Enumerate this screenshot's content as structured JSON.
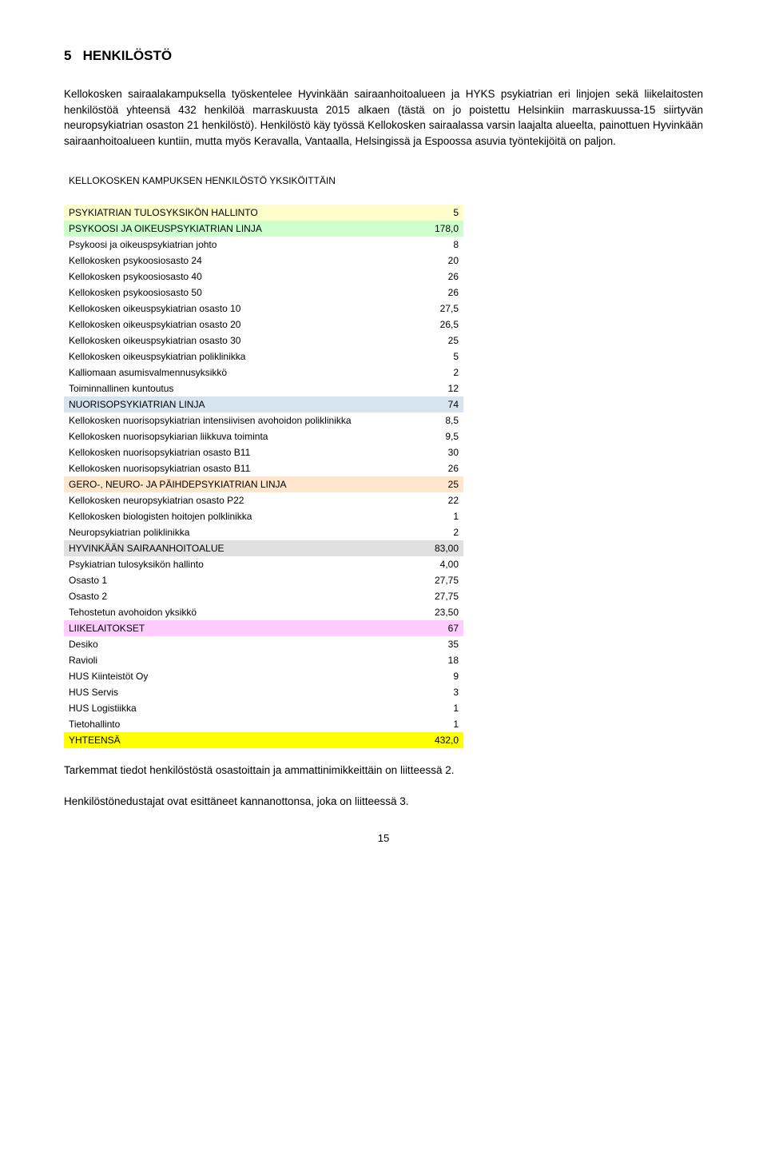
{
  "section": {
    "number": "5",
    "title": "HENKILÖSTÖ"
  },
  "intro_paragraph": "Kellokosken sairaalakampuksella työskentelee Hyvinkään sairaanhoitoalueen ja HYKS psykiatrian eri linjojen sekä liikelaitosten henkilöstöä yhteensä 432 henkilöä marraskuusta 2015 alkaen (tästä on jo poistettu Helsinkiin marraskuussa-15 siirtyvän neuropsykiatrian osaston 21 henkilöstö). Henkilöstö käy työssä Kellokosken sairaalassa varsin laajalta alueelta, painottuen Hyvinkään sairaanhoitoalueen kuntiin, mutta myös Keravalla, Vantaalla, Helsingissä ja Espoossa asuvia työntekijöitä on paljon.",
  "table": {
    "title": "KELLOKOSKEN KAMPUKSEN HENKILÖSTÖ YKSIKÖITTÄIN",
    "colors": {
      "yellow_light": "#ffffcc",
      "green_light": "#ccffcc",
      "blue_light": "#d6e4f0",
      "orange_light": "#ffe6cc",
      "gray_light": "#e0e0e0",
      "pink_light": "#ffccff",
      "yellow_bright": "#ffff00",
      "text": "#000000"
    },
    "rows": [
      {
        "label": "PSYKIATRIAN TULOSYKSIKÖN HALLINTO",
        "value": "5",
        "bg": "yellow_light"
      },
      {
        "label": "PSYKOOSI JA OIKEUSPSYKIATRIAN LINJA",
        "value": "178,0",
        "bg": "green_light"
      },
      {
        "label": "Psykoosi ja oikeuspsykiatrian johto",
        "value": "8",
        "bg": null
      },
      {
        "label": "Kellokosken psykoosiosasto 24",
        "value": "20",
        "bg": null
      },
      {
        "label": "Kellokosken psykoosiosasto 40",
        "value": "26",
        "bg": null
      },
      {
        "label": "Kellokosken psykoosiosasto 50",
        "value": "26",
        "bg": null
      },
      {
        "label": "Kellokosken oikeuspsykiatrian osasto 10",
        "value": "27,5",
        "bg": null
      },
      {
        "label": "Kellokosken oikeuspsykiatrian osasto 20",
        "value": "26,5",
        "bg": null
      },
      {
        "label": "Kellokosken oikeuspsykiatrian osasto 30",
        "value": "25",
        "bg": null
      },
      {
        "label": "Kellokosken oikeuspsykiatrian poliklinikka",
        "value": "5",
        "bg": null
      },
      {
        "label": "Kalliomaan asumisvalmennusyksikkö",
        "value": "2",
        "bg": null
      },
      {
        "label": "Toiminnallinen kuntoutus",
        "value": "12",
        "bg": null
      },
      {
        "label": "NUORISOPSYKIATRIAN LINJA",
        "value": "74",
        "bg": "blue_light"
      },
      {
        "label": "Kellokosken nuorisopsykiatrian intensiivisen avohoidon poliklinikka",
        "value": "8,5",
        "bg": null
      },
      {
        "label": "Kellokosken nuorisopsykiarian liikkuva toiminta",
        "value": "9,5",
        "bg": null
      },
      {
        "label": "Kellokosken nuorisopsykiatrian osasto B11",
        "value": "30",
        "bg": null
      },
      {
        "label": "Kellokosken nuorisopsykiatrian osasto B11",
        "value": "26",
        "bg": null
      },
      {
        "label": "GERO-, NEURO- JA PÄIHDEPSYKIATRIAN LINJA",
        "value": "25",
        "bg": "orange_light"
      },
      {
        "label": "Kellokosken neuropsykiatrian osasto P22",
        "value": "22",
        "bg": null
      },
      {
        "label": "Kellokosken biologisten hoitojen polklinikka",
        "value": "1",
        "bg": null
      },
      {
        "label": "Neuropsykiatrian poliklinikka",
        "value": "2",
        "bg": null
      },
      {
        "label": "HYVINKÄÄN SAIRAANHOITOALUE",
        "value": "83,00",
        "bg": "gray_light"
      },
      {
        "label": "Psykiatrian tulosyksikön hallinto",
        "value": "4,00",
        "bg": null
      },
      {
        "label": "Osasto 1",
        "value": "27,75",
        "bg": null
      },
      {
        "label": "Osasto 2",
        "value": "27,75",
        "bg": null
      },
      {
        "label": "Tehostetun avohoidon yksikkö",
        "value": "23,50",
        "bg": null
      },
      {
        "label": "LIIKELAITOKSET",
        "value": "67",
        "bg": "pink_light"
      },
      {
        "label": "Desiko",
        "value": "35",
        "bg": null
      },
      {
        "label": "Ravioli",
        "value": "18",
        "bg": null
      },
      {
        "label": "HUS Kiinteistöt Oy",
        "value": "9",
        "bg": null
      },
      {
        "label": "HUS Servis",
        "value": "3",
        "bg": null
      },
      {
        "label": "HUS Logistiikka",
        "value": "1",
        "bg": null
      },
      {
        "label": "Tietohallinto",
        "value": "1",
        "bg": null
      },
      {
        "label": "YHTEENSÄ",
        "value": "432,0",
        "bg": "yellow_bright"
      }
    ]
  },
  "footer": {
    "line1": "Tarkemmat tiedot henkilöstöstä osastoittain ja ammattinimikkeittäin on liitteessä 2.",
    "line2": "Henkilöstönedustajat ovat esittäneet kannanottonsa, joka on liitteessä 3."
  },
  "page_number": "15"
}
